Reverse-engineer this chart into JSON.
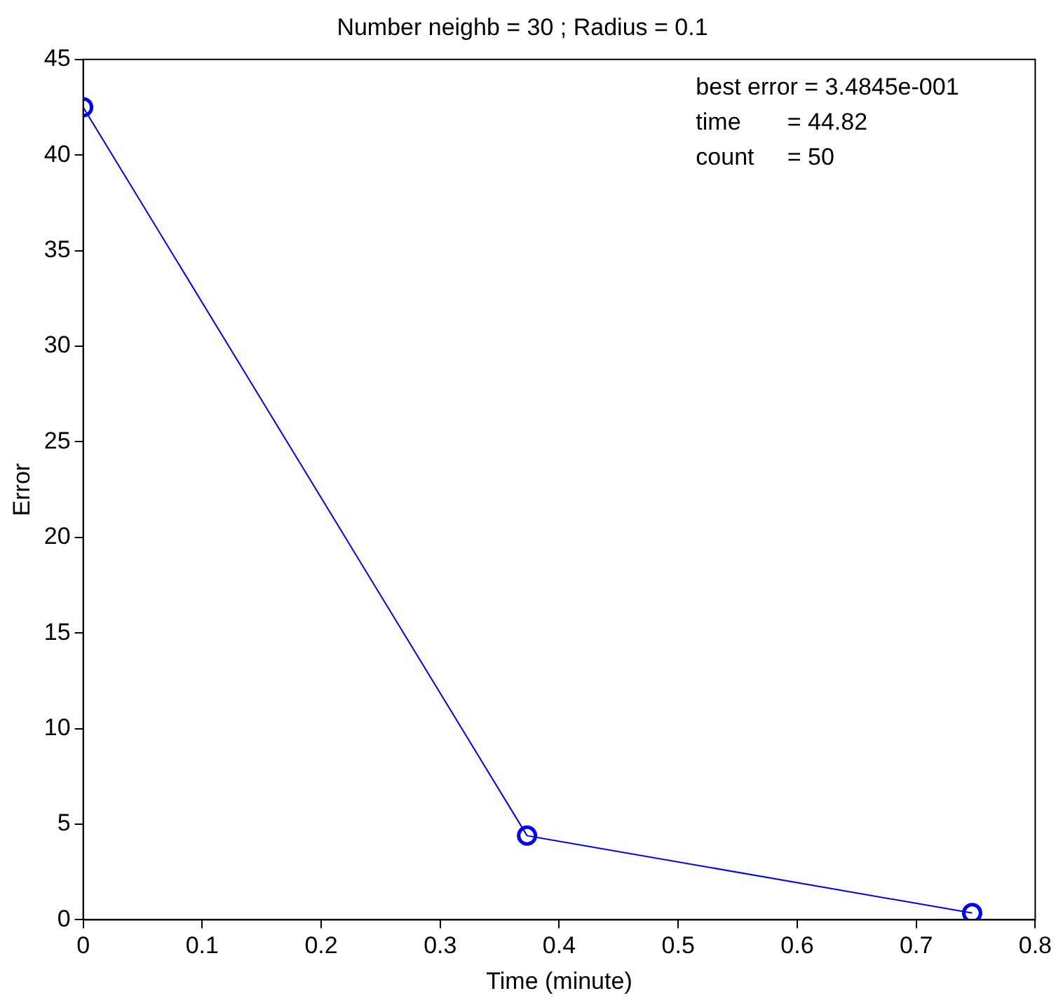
{
  "chart_data": {
    "type": "line",
    "title": "Number neighb = 30 ; Radius = 0.1",
    "xlabel": "Time (minute)",
    "ylabel": "Error",
    "x": [
      0,
      0.373,
      0.747
    ],
    "series": [
      {
        "color": "#0000ff",
        "values": [
          42.5,
          4.4,
          0.35
        ]
      }
    ],
    "xlim": [
      0,
      0.8
    ],
    "xticks": [
      0,
      0.1,
      0.2,
      0.3,
      0.4,
      0.5,
      0.6,
      0.7,
      0.8
    ],
    "ylim": [
      0,
      45
    ],
    "yticks": [
      0,
      5,
      10,
      15,
      20,
      25,
      30,
      35,
      40,
      45
    ],
    "annotations": [
      "best error = 3.4845e-001",
      "time       = 44.82",
      "count     = 50"
    ],
    "grid": false,
    "legend": false,
    "marker": "circle",
    "line_style": "solid"
  }
}
